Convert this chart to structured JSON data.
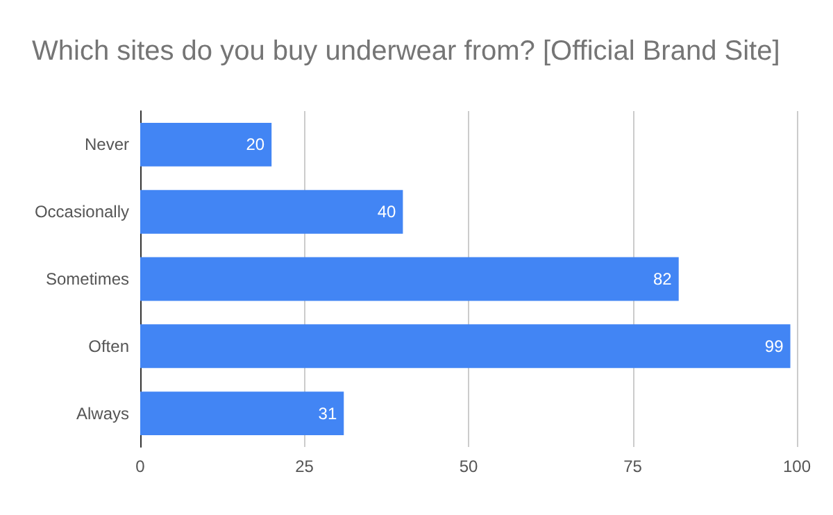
{
  "chart_data": {
    "type": "bar",
    "title": "Which sites do you buy underwear from? [Official Brand Site]",
    "orientation": "horizontal",
    "categories": [
      "Never",
      "Occasionally",
      "Sometimes",
      "Often",
      "Always"
    ],
    "values": [
      20,
      40,
      82,
      99,
      31
    ],
    "color": "#4285f4",
    "xlim": [
      0,
      100
    ],
    "xticks": [
      0,
      25,
      50,
      75,
      100
    ],
    "grid": "x",
    "data_labels": true
  }
}
